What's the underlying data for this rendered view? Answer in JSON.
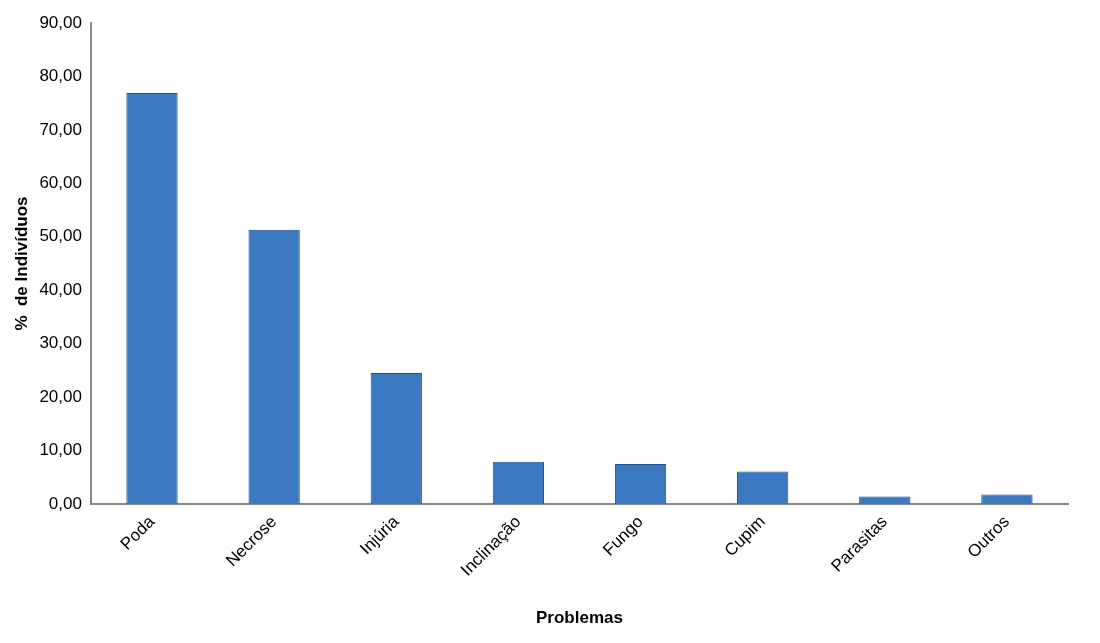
{
  "chart_data": {
    "type": "bar",
    "xlabel": "Problemas",
    "ylabel": "%  de Indivíduos",
    "categories": [
      "Poda",
      "Necrose",
      "Injúria",
      "Inclinação",
      "Fungo",
      "Cupim",
      "Parasitas",
      "Outros"
    ],
    "values": [
      76.9,
      51.3,
      24.5,
      7.9,
      7.5,
      6.1,
      1.4,
      1.8
    ],
    "color": "#3a78c2",
    "ylim": [
      0,
      90
    ],
    "yticks": [
      {
        "value": 0,
        "label": "0,00"
      },
      {
        "value": 10,
        "label": "10,00"
      },
      {
        "value": 20,
        "label": "20,00"
      },
      {
        "value": 30,
        "label": "30,00"
      },
      {
        "value": 40,
        "label": "40,00"
      },
      {
        "value": 50,
        "label": "50,00"
      },
      {
        "value": 60,
        "label": "60,00"
      },
      {
        "value": 70,
        "label": "70,00"
      },
      {
        "value": 80,
        "label": "80,00"
      },
      {
        "value": 90,
        "label": "90,00"
      }
    ],
    "grid": false
  }
}
